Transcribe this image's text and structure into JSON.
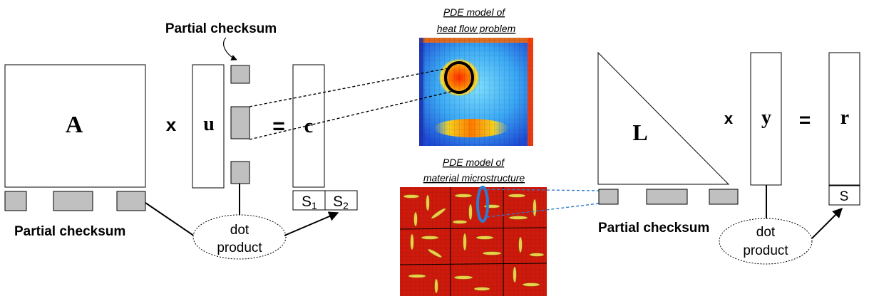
{
  "left": {
    "matrix_label": "A",
    "times_symbol": "x",
    "vector_label": "u",
    "equals_symbol": "=",
    "result_label": "c",
    "checksum_top_label": "Partial checksum",
    "checksum_bottom_label": "Partial checksum",
    "dot_product_line1": "dot",
    "dot_product_line2": "product",
    "s1_base": "S",
    "s1_sub": "1",
    "s2_base": "S",
    "s2_sub": "2"
  },
  "right": {
    "matrix_label": "L",
    "times_symbol": "x",
    "vector_label": "y",
    "equals_symbol": "=",
    "result_label": "r",
    "checksum_bottom_label": "Partial checksum",
    "dot_product_line1": "dot",
    "dot_product_line2": "product",
    "s_label": "S"
  },
  "center": {
    "heat_caption_line1": "PDE model of",
    "heat_caption_line2": "heat flow problem",
    "micro_caption_line1": "PDE model of",
    "micro_caption_line2": "material microstructure"
  },
  "colors": {
    "block_fill": "#c0c0c0",
    "heat_hot": "#ff2a00",
    "heat_cold": "#1e4bd6",
    "micro_base": "#d01a0c",
    "micro_inclusion": "#e8d04a",
    "highlight_blue": "#2e7bd1"
  }
}
